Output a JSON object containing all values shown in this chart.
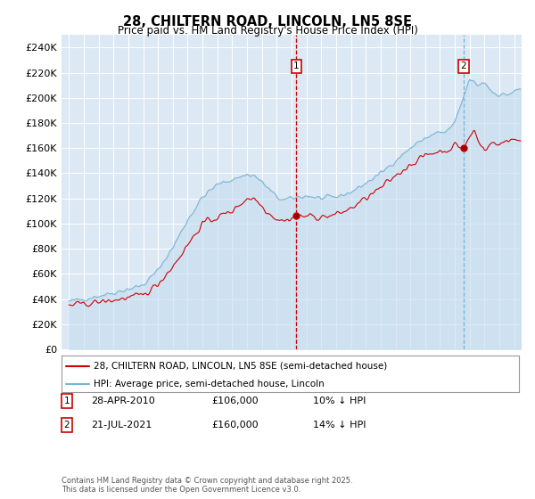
{
  "title": "28, CHILTERN ROAD, LINCOLN, LN5 8SE",
  "subtitle": "Price paid vs. HM Land Registry's House Price Index (HPI)",
  "hpi_label": "HPI: Average price, semi-detached house, Lincoln",
  "property_label": "28, CHILTERN ROAD, LINCOLN, LN5 8SE (semi-detached house)",
  "footnote": "Contains HM Land Registry data © Crown copyright and database right 2025.\nThis data is licensed under the Open Government Licence v3.0.",
  "annotation1": {
    "num": "1",
    "date": "28-APR-2010",
    "price": "£106,000",
    "hpi": "10% ↓ HPI",
    "year": 2010.33
  },
  "annotation2": {
    "num": "2",
    "date": "21-JUL-2021",
    "price": "£160,000",
    "hpi": "14% ↓ HPI",
    "year": 2021.58
  },
  "ann1_price_val": 106000,
  "ann2_price_val": 160000,
  "ylim": [
    0,
    250000
  ],
  "yticks": [
    0,
    20000,
    40000,
    60000,
    80000,
    100000,
    120000,
    140000,
    160000,
    180000,
    200000,
    220000,
    240000
  ],
  "xlim": [
    1994.5,
    2025.5
  ],
  "background_color": "#ffffff",
  "plot_bg_color": "#dce9f5",
  "hpi_color": "#7ab3d4",
  "hpi_fill_color": "#c5ddef",
  "property_color": "#cc0000",
  "grid_color": "#ffffff",
  "ann1_line_color": "#cc0000",
  "ann2_line_color": "#7ab3d4",
  "legend_border_color": "#aaaaaa"
}
